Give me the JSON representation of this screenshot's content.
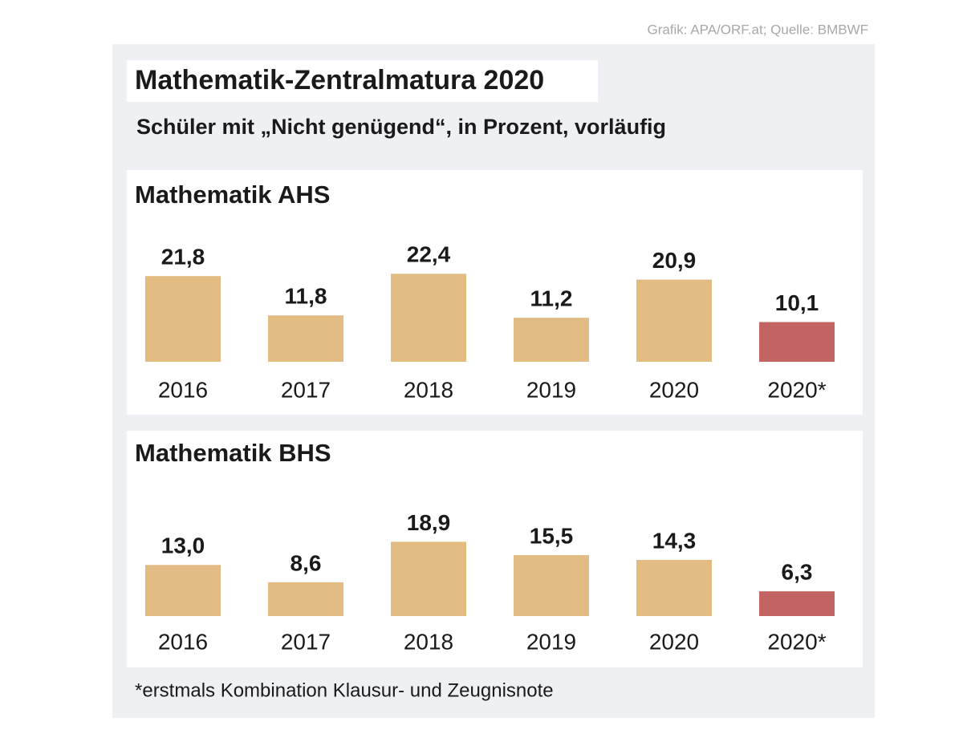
{
  "source": "Grafik: APA/ORF.at; Quelle: BMBWF",
  "title": "Mathematik-Zentralmatura 2020",
  "subtitle": "Schüler mit „Nicht genügend“, in Prozent, vorläufig",
  "footnote": "*erstmals Kombination Klausur- und Zeugnisnote",
  "chart_data": [
    {
      "type": "bar",
      "title": "Mathematik AHS",
      "categories": [
        "2016",
        "2017",
        "2018",
        "2019",
        "2020",
        "2020*"
      ],
      "values": [
        21.8,
        11.8,
        22.4,
        11.2,
        20.9,
        10.1
      ],
      "value_labels": [
        "21,8",
        "11,8",
        "22,4",
        "11,2",
        "20,9",
        "10,1"
      ],
      "colors": [
        "#e2bc82",
        "#e2bc82",
        "#e2bc82",
        "#e2bc82",
        "#e2bc82",
        "#c26562"
      ]
    },
    {
      "type": "bar",
      "title": "Mathematik BHS",
      "categories": [
        "2016",
        "2017",
        "2018",
        "2019",
        "2020",
        "2020*"
      ],
      "values": [
        13.0,
        8.6,
        18.9,
        15.5,
        14.3,
        6.3
      ],
      "value_labels": [
        "13,0",
        "8,6",
        "18,9",
        "15,5",
        "14,3",
        "6,3"
      ],
      "colors": [
        "#e2bc82",
        "#e2bc82",
        "#e2bc82",
        "#e2bc82",
        "#e2bc82",
        "#c26562"
      ]
    }
  ]
}
